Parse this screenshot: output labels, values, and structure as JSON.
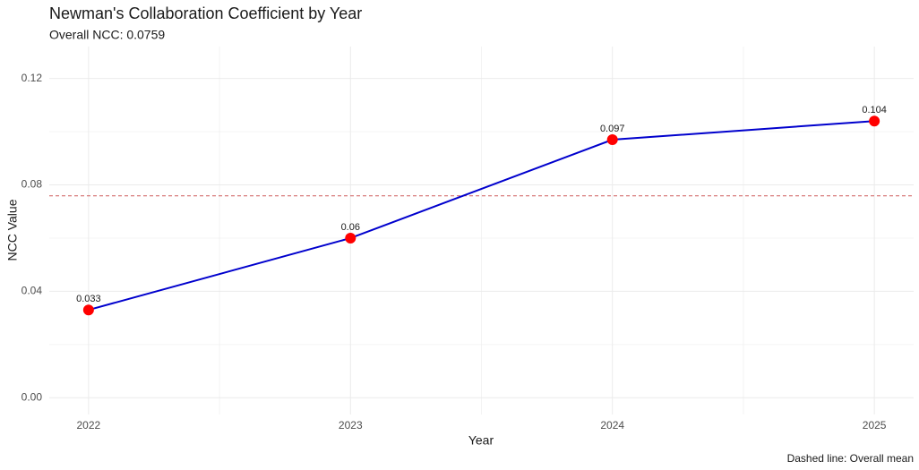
{
  "chart_data": {
    "type": "line",
    "title": "Newman's Collaboration Coefficient by Year",
    "subtitle": "Overall NCC: 0.0759",
    "x_label": "Year",
    "y_label": "NCC Value",
    "caption": "Dashed line: Overall mean",
    "x": [
      2022,
      2023,
      2024,
      2025
    ],
    "series": [
      {
        "name": "NCC",
        "color": "#0000cd",
        "point_color": "#ff0000",
        "values": [
          0.033,
          0.06,
          0.097,
          0.104
        ]
      }
    ],
    "reference_line": {
      "value": 0.0759,
      "color": "#cd5c5c",
      "dashed": true
    },
    "xlim": [
      2021.85,
      2025.15
    ],
    "xticks": [
      2022,
      2023,
      2024,
      2025
    ],
    "x_minor_ticks": [
      2022.5,
      2023.5,
      2024.5
    ],
    "ylim": [
      -0.0063,
      0.132
    ],
    "yticks": [
      {
        "value": 0,
        "label": "0.00"
      },
      0.04,
      0.08,
      0.12
    ],
    "y_minor_ticks": [
      0.02,
      0.06,
      0.1
    ],
    "grid": true
  }
}
